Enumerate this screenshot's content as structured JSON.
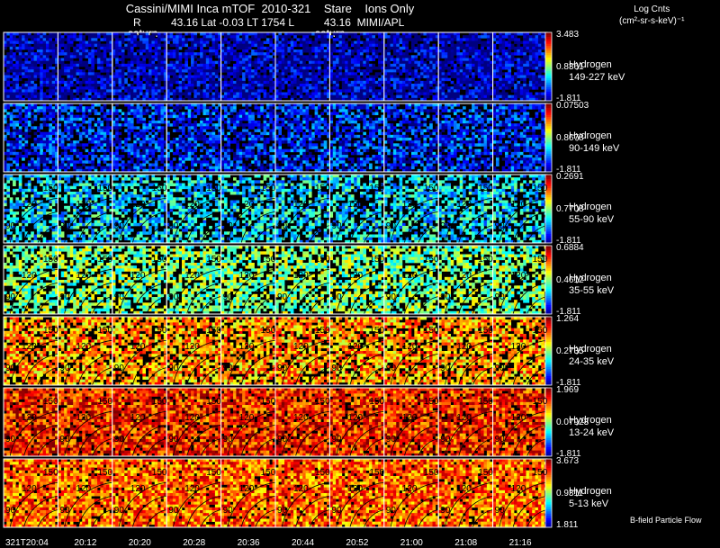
{
  "header": {
    "title": "Cassini/MIMI Inca mTOF  2010-321    Stare    Ions Only",
    "subtitle": "R          43.16 Lat -0.03 LT 1754 L          43.16  MIMI/APL",
    "saturn_labels": [
      "saturn",
      "saturn"
    ],
    "units_line1": "Log Cnts",
    "units_line2": "(cm²-sr-s-keV)⁻¹",
    "bfield_label": "B-field Particle Flow"
  },
  "chart_data": {
    "type": "heatmap",
    "times": [
      "321T20:04",
      "20:12",
      "20:20",
      "20:28",
      "20:36",
      "20:44",
      "20:52",
      "21:00",
      "21:08",
      "21:16"
    ],
    "rows": [
      {
        "species": "Hydrogen",
        "energy": "149-227 keV",
        "max": "3.483",
        "mid": "0.8361",
        "min": "-1.811",
        "level": 0.05,
        "fill": 0.85
      },
      {
        "species": "Hydrogen",
        "energy": "90-149 keV",
        "max": "0.07503",
        "mid": "0.8678",
        "min": "-1.811",
        "level": 0.15,
        "fill": 0.7
      },
      {
        "species": "Hydrogen",
        "energy": "55-90 keV",
        "max": "0.2691",
        "mid": "0.7708",
        "min": "-1.811",
        "level": 0.35,
        "fill": 0.6
      },
      {
        "species": "Hydrogen",
        "energy": "35-55 keV",
        "max": "0.6884",
        "mid": "0.4612",
        "min": "-1.811",
        "level": 0.5,
        "fill": 0.65
      },
      {
        "species": "Hydrogen",
        "energy": "24-35 keV",
        "max": "1.264",
        "mid": "0.2735",
        "min": "-1.811",
        "level": 0.72,
        "fill": 0.75
      },
      {
        "species": "Hydrogen",
        "energy": "13-24 keV",
        "max": "1.969",
        "mid": "0.07923",
        "min": "-1.811",
        "level": 0.85,
        "fill": 0.9
      },
      {
        "species": "Hydrogen",
        "energy": "5-13 keV",
        "max": "3.673",
        "mid": "0.9311",
        "min": "1.811",
        "level": 0.78,
        "fill": 0.92
      }
    ],
    "contour_labels": [
      "90",
      "120",
      "150"
    ]
  }
}
